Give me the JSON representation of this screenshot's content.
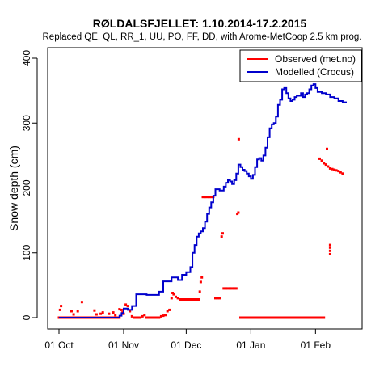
{
  "chart_data": {
    "type": "line",
    "title": "RØLDALSFJELLET: 1.10.2014-17.2.2015",
    "subtitle": "Replaced QE, QL, RR_1, UU, PO, FF, DD,  with Arome-MetCoop 2.5 km prog.",
    "ylabel": "Snow depth (cm)",
    "xlabel": "",
    "ylim": [
      0,
      400
    ],
    "y_ticks": [
      "0",
      "100",
      "200",
      "300",
      "400"
    ],
    "x_ticks": [
      {
        "day": 0,
        "label": "01 Oct"
      },
      {
        "day": 31,
        "label": "01 Nov"
      },
      {
        "day": 61,
        "label": "01 Dec"
      },
      {
        "day": 92,
        "label": "01 Jan"
      },
      {
        "day": 123,
        "label": "01 Feb"
      }
    ],
    "legend": {
      "placement": "top-right"
    },
    "grid": false,
    "series": [
      {
        "name": "Observed (met.no)",
        "style": "points",
        "color": "#ff0000",
        "points": [
          [
            0,
            0
          ],
          [
            1,
            0
          ],
          [
            2,
            0
          ],
          [
            3,
            0
          ],
          [
            4,
            0
          ],
          [
            5,
            0
          ],
          [
            6,
            0
          ],
          [
            7,
            0
          ],
          [
            8,
            0
          ],
          [
            9,
            0
          ],
          [
            10,
            0
          ],
          [
            11,
            0
          ],
          [
            12,
            0
          ],
          [
            13,
            0
          ],
          [
            14,
            0
          ],
          [
            15,
            0
          ],
          [
            16,
            0
          ],
          [
            17,
            0
          ],
          [
            18,
            0
          ],
          [
            19,
            0
          ],
          [
            20,
            0
          ],
          [
            21,
            0
          ],
          [
            22,
            0
          ],
          [
            23,
            0
          ],
          [
            24,
            0
          ],
          [
            25,
            0
          ],
          [
            26,
            0
          ],
          [
            27,
            0
          ],
          [
            28,
            0
          ],
          [
            29,
            0
          ],
          [
            0.5,
            12
          ],
          [
            1,
            18
          ],
          [
            6,
            10
          ],
          [
            7,
            5
          ],
          [
            9,
            10
          ],
          [
            11,
            24
          ],
          [
            17,
            11
          ],
          [
            18,
            5
          ],
          [
            20,
            6
          ],
          [
            21,
            8
          ],
          [
            24,
            6
          ],
          [
            26,
            8
          ],
          [
            27,
            4
          ],
          [
            29,
            13
          ],
          [
            30,
            12
          ],
          [
            30.5,
            8
          ],
          [
            31,
            6
          ],
          [
            32,
            20
          ],
          [
            33,
            18
          ],
          [
            34,
            10
          ],
          [
            35,
            2
          ],
          [
            36,
            0
          ],
          [
            37,
            0
          ],
          [
            38,
            0
          ],
          [
            39,
            0
          ],
          [
            40,
            2
          ],
          [
            41,
            4
          ],
          [
            42,
            0
          ],
          [
            43,
            0
          ],
          [
            44,
            0
          ],
          [
            45,
            0
          ],
          [
            46,
            0
          ],
          [
            47,
            0
          ],
          [
            48,
            0
          ],
          [
            49,
            2
          ],
          [
            50,
            3
          ],
          [
            51,
            4
          ],
          [
            52,
            10
          ],
          [
            53,
            12
          ],
          [
            54,
            30
          ],
          [
            54.5,
            38
          ],
          [
            55,
            36
          ],
          [
            56,
            32
          ],
          [
            57,
            30
          ],
          [
            58,
            28
          ],
          [
            59,
            28
          ],
          [
            60,
            28
          ],
          [
            61,
            28
          ],
          [
            62,
            28
          ],
          [
            63,
            28
          ],
          [
            64,
            28
          ],
          [
            65,
            28
          ],
          [
            66,
            28
          ],
          [
            67,
            28
          ],
          [
            67.5,
            40
          ],
          [
            68,
            55
          ],
          [
            68.5,
            62
          ],
          [
            69,
            186
          ],
          [
            70,
            186
          ],
          [
            71,
            186
          ],
          [
            72,
            186
          ],
          [
            73,
            186
          ],
          [
            74,
            186
          ],
          [
            75,
            30
          ],
          [
            76,
            30
          ],
          [
            77,
            30
          ],
          [
            78,
            125
          ],
          [
            78.5,
            130
          ],
          [
            79,
            45
          ],
          [
            80,
            45
          ],
          [
            81,
            45
          ],
          [
            82,
            45
          ],
          [
            83,
            45
          ],
          [
            84,
            45
          ],
          [
            85,
            45
          ],
          [
            85.5,
            160
          ],
          [
            86,
            162
          ],
          [
            86.2,
            275
          ],
          [
            87,
            0
          ],
          [
            88,
            0
          ],
          [
            89,
            0
          ],
          [
            90,
            0
          ],
          [
            91,
            0
          ],
          [
            92,
            0
          ],
          [
            93,
            0
          ],
          [
            94,
            0
          ],
          [
            95,
            0
          ],
          [
            96,
            0
          ],
          [
            97,
            0
          ],
          [
            98,
            0
          ],
          [
            99,
            0
          ],
          [
            100,
            0
          ],
          [
            101,
            0
          ],
          [
            102,
            0
          ],
          [
            103,
            0
          ],
          [
            104,
            0
          ],
          [
            105,
            0
          ],
          [
            106,
            0
          ],
          [
            107,
            0
          ],
          [
            108,
            0
          ],
          [
            109,
            0
          ],
          [
            110,
            0
          ],
          [
            111,
            0
          ],
          [
            112,
            0
          ],
          [
            113,
            0
          ],
          [
            114,
            0
          ],
          [
            115,
            0
          ],
          [
            116,
            0
          ],
          [
            117,
            0
          ],
          [
            118,
            0
          ],
          [
            119,
            0
          ],
          [
            120,
            0
          ],
          [
            121,
            0
          ],
          [
            122,
            0
          ],
          [
            123,
            0
          ],
          [
            124,
            0
          ],
          [
            125,
            0
          ],
          [
            126,
            0
          ],
          [
            127,
            0
          ],
          [
            125,
            245
          ],
          [
            126,
            242
          ],
          [
            127,
            238
          ],
          [
            128,
            236
          ],
          [
            128.5,
            260
          ],
          [
            129,
            233
          ],
          [
            130,
            230
          ],
          [
            131,
            229
          ],
          [
            132,
            228
          ],
          [
            133,
            227
          ],
          [
            134,
            226
          ],
          [
            135,
            224
          ],
          [
            136,
            222
          ],
          [
            130,
            98
          ],
          [
            130,
            103
          ],
          [
            130,
            108
          ],
          [
            130,
            112
          ]
        ]
      },
      {
        "name": "Modelled (Crocus)",
        "style": "step",
        "color": "#0000cc",
        "points": [
          [
            0,
            0
          ],
          [
            29,
            0
          ],
          [
            29,
            3
          ],
          [
            30,
            3
          ],
          [
            30,
            7
          ],
          [
            31,
            7
          ],
          [
            31,
            14
          ],
          [
            33,
            14
          ],
          [
            33,
            12
          ],
          [
            35,
            12
          ],
          [
            35,
            18
          ],
          [
            37,
            18
          ],
          [
            37,
            36
          ],
          [
            42,
            36
          ],
          [
            42,
            35
          ],
          [
            48,
            35
          ],
          [
            48,
            40
          ],
          [
            50,
            40
          ],
          [
            50,
            56
          ],
          [
            54,
            56
          ],
          [
            54,
            62
          ],
          [
            57,
            62
          ],
          [
            57,
            58
          ],
          [
            59,
            58
          ],
          [
            59,
            66
          ],
          [
            61,
            66
          ],
          [
            61,
            70
          ],
          [
            63,
            70
          ],
          [
            63,
            78
          ],
          [
            64,
            78
          ],
          [
            64,
            100
          ],
          [
            65,
            100
          ],
          [
            65,
            112
          ],
          [
            66,
            112
          ],
          [
            66,
            125
          ],
          [
            67,
            125
          ],
          [
            67,
            130
          ],
          [
            68,
            130
          ],
          [
            68,
            133
          ],
          [
            69,
            133
          ],
          [
            69,
            138
          ],
          [
            70,
            138
          ],
          [
            70,
            148
          ],
          [
            71,
            148
          ],
          [
            71,
            160
          ],
          [
            72,
            160
          ],
          [
            72,
            170
          ],
          [
            73,
            170
          ],
          [
            73,
            178
          ],
          [
            74,
            178
          ],
          [
            74,
            188
          ],
          [
            75,
            188
          ],
          [
            75,
            198
          ],
          [
            77,
            198
          ],
          [
            77,
            196
          ],
          [
            79,
            196
          ],
          [
            79,
            202
          ],
          [
            80,
            202
          ],
          [
            80,
            208
          ],
          [
            81,
            208
          ],
          [
            81,
            212
          ],
          [
            82,
            212
          ],
          [
            82,
            210
          ],
          [
            83,
            210
          ],
          [
            83,
            206
          ],
          [
            84,
            206
          ],
          [
            84,
            212
          ],
          [
            85,
            212
          ],
          [
            85,
            222
          ],
          [
            86,
            222
          ],
          [
            86,
            236
          ],
          [
            87,
            236
          ],
          [
            87,
            232
          ],
          [
            88,
            232
          ],
          [
            88,
            228
          ],
          [
            89,
            228
          ],
          [
            89,
            226
          ],
          [
            90,
            226
          ],
          [
            90,
            222
          ],
          [
            91,
            222
          ],
          [
            91,
            218
          ],
          [
            92,
            218
          ],
          [
            92,
            214
          ],
          [
            93,
            214
          ],
          [
            93,
            220
          ],
          [
            94,
            220
          ],
          [
            94,
            232
          ],
          [
            95,
            232
          ],
          [
            95,
            244
          ],
          [
            96,
            244
          ],
          [
            96,
            246
          ],
          [
            97,
            246
          ],
          [
            97,
            242
          ],
          [
            98,
            242
          ],
          [
            98,
            250
          ],
          [
            99,
            250
          ],
          [
            99,
            262
          ],
          [
            100,
            262
          ],
          [
            100,
            278
          ],
          [
            101,
            278
          ],
          [
            101,
            292
          ],
          [
            102,
            292
          ],
          [
            102,
            298
          ],
          [
            103,
            298
          ],
          [
            103,
            300
          ],
          [
            104,
            300
          ],
          [
            104,
            310
          ],
          [
            105,
            310
          ],
          [
            105,
            328
          ],
          [
            106,
            328
          ],
          [
            106,
            336
          ],
          [
            107,
            336
          ],
          [
            107,
            352
          ],
          [
            108,
            352
          ],
          [
            108,
            354
          ],
          [
            109,
            354
          ],
          [
            109,
            346
          ],
          [
            110,
            346
          ],
          [
            110,
            338
          ],
          [
            111,
            338
          ],
          [
            111,
            334
          ],
          [
            112,
            334
          ],
          [
            112,
            336
          ],
          [
            113,
            336
          ],
          [
            113,
            340
          ],
          [
            114,
            340
          ],
          [
            114,
            342
          ],
          [
            116,
            342
          ],
          [
            116,
            346
          ],
          [
            117,
            346
          ],
          [
            117,
            340
          ],
          [
            118,
            340
          ],
          [
            118,
            344
          ],
          [
            119,
            344
          ],
          [
            119,
            346
          ],
          [
            120,
            346
          ],
          [
            120,
            352
          ],
          [
            121,
            352
          ],
          [
            121,
            358
          ],
          [
            122,
            358
          ],
          [
            122,
            360
          ],
          [
            123,
            360
          ],
          [
            123,
            354
          ],
          [
            124,
            354
          ],
          [
            124,
            348
          ],
          [
            126,
            348
          ],
          [
            126,
            346
          ],
          [
            128,
            346
          ],
          [
            128,
            344
          ],
          [
            130,
            344
          ],
          [
            130,
            340
          ],
          [
            132,
            340
          ],
          [
            132,
            338
          ],
          [
            134,
            338
          ],
          [
            134,
            334
          ],
          [
            136,
            334
          ],
          [
            136,
            332
          ],
          [
            138,
            332
          ]
        ]
      }
    ]
  }
}
